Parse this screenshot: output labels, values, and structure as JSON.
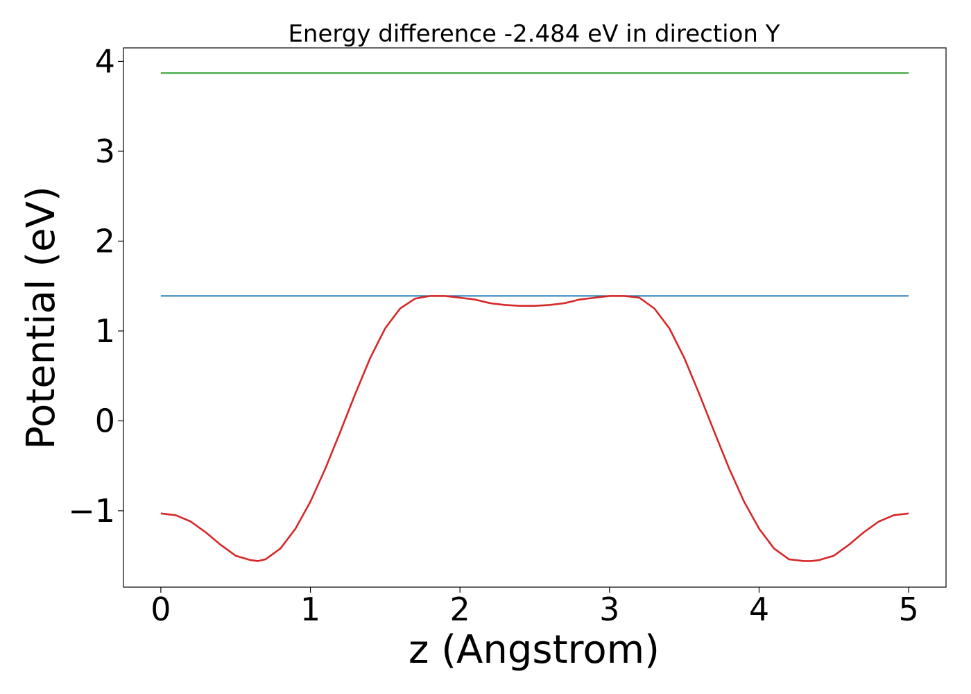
{
  "chart_data": {
    "type": "line",
    "title": "Energy difference -2.484 eV in direction Y",
    "xlabel": "z (Angstrom)",
    "ylabel": "Potential (eV)",
    "xlim": [
      -0.25,
      5.25
    ],
    "ylim": [
      -1.85,
      4.15
    ],
    "xticks": [
      0,
      1,
      2,
      3,
      4,
      5
    ],
    "xtick_labels": [
      "0",
      "1",
      "2",
      "3",
      "4",
      "5"
    ],
    "yticks": [
      -1,
      0,
      1,
      2,
      3,
      4
    ],
    "ytick_labels": [
      "−1",
      "0",
      "1",
      "2",
      "3",
      "4"
    ],
    "grid": false,
    "series": [
      {
        "color": "#2ca02c",
        "x": [
          0,
          5
        ],
        "y": [
          3.87,
          3.87
        ]
      },
      {
        "color": "#1f77b4",
        "x": [
          0,
          5
        ],
        "y": [
          1.39,
          1.39
        ]
      },
      {
        "color": "#d62728",
        "x": [
          0,
          0.1,
          0.2,
          0.3,
          0.4,
          0.5,
          0.6,
          0.65,
          0.7,
          0.8,
          0.9,
          1.0,
          1.1,
          1.2,
          1.3,
          1.4,
          1.5,
          1.6,
          1.7,
          1.8,
          1.9,
          2.0,
          2.1,
          2.2,
          2.3,
          2.4,
          2.5,
          2.6,
          2.7,
          2.8,
          2.9,
          3.0,
          3.1,
          3.2,
          3.3,
          3.4,
          3.5,
          3.6,
          3.7,
          3.8,
          3.9,
          4.0,
          4.1,
          4.2,
          4.3,
          4.35,
          4.4,
          4.5,
          4.6,
          4.7,
          4.8,
          4.9,
          5.0
        ],
        "y": [
          -1.03,
          -1.05,
          -1.12,
          -1.24,
          -1.38,
          -1.5,
          -1.55,
          -1.56,
          -1.54,
          -1.42,
          -1.2,
          -0.9,
          -0.53,
          -0.12,
          0.3,
          0.7,
          1.03,
          1.25,
          1.36,
          1.39,
          1.39,
          1.37,
          1.35,
          1.31,
          1.29,
          1.28,
          1.28,
          1.29,
          1.31,
          1.35,
          1.37,
          1.39,
          1.39,
          1.37,
          1.25,
          1.03,
          0.7,
          0.3,
          -0.12,
          -0.53,
          -0.9,
          -1.2,
          -1.42,
          -1.54,
          -1.56,
          -1.56,
          -1.55,
          -1.5,
          -1.38,
          -1.24,
          -1.12,
          -1.05,
          -1.03
        ]
      }
    ]
  }
}
